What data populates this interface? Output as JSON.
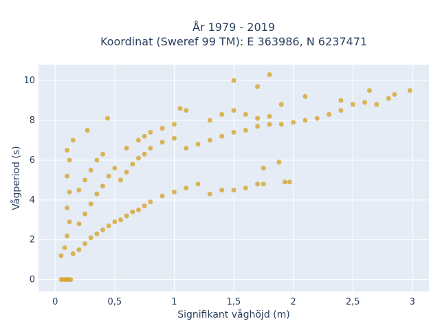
{
  "chart_data": {
    "type": "scatter",
    "title_lines": [
      "År 1979 - 2019",
      "Koordinat (Sweref 99 TM): E 363986, N 6237471"
    ],
    "xlabel": "Signifikant våghöjd (m)",
    "ylabel": "Vågperiod (s)",
    "xlim": [
      -0.14,
      3.14
    ],
    "ylim": [
      -0.6,
      10.8
    ],
    "xticks": [
      0,
      0.5,
      1,
      1.5,
      2,
      2.5,
      3
    ],
    "xtick_labels": [
      "0",
      "0,5",
      "1",
      "1,5",
      "2",
      "2,5",
      "3"
    ],
    "yticks": [
      0,
      2,
      4,
      6,
      8,
      10
    ],
    "ytick_labels": [
      "0",
      "2",
      "4",
      "6",
      "8",
      "10"
    ],
    "grid": true,
    "colors": {
      "point": "#d4a020",
      "plot_bg": "#e5ecf6",
      "grid": "#ffffff",
      "text": "#2a3f5f"
    },
    "series": [
      {
        "points": [
          [
            0.05,
            0.0
          ],
          [
            0.07,
            0.0
          ],
          [
            0.09,
            0.0
          ],
          [
            0.11,
            0.0
          ],
          [
            0.13,
            0.0
          ],
          [
            0.05,
            1.2
          ],
          [
            0.08,
            1.6
          ],
          [
            0.1,
            2.2
          ],
          [
            0.12,
            2.9
          ],
          [
            0.1,
            3.6
          ],
          [
            0.12,
            4.4
          ],
          [
            0.1,
            5.2
          ],
          [
            0.12,
            6.0
          ],
          [
            0.1,
            6.5
          ],
          [
            0.15,
            7.0
          ],
          [
            0.15,
            1.3
          ],
          [
            0.2,
            1.5
          ],
          [
            0.25,
            1.8
          ],
          [
            0.3,
            2.1
          ],
          [
            0.35,
            2.3
          ],
          [
            0.4,
            2.5
          ],
          [
            0.45,
            2.7
          ],
          [
            0.5,
            2.9
          ],
          [
            0.2,
            2.8
          ],
          [
            0.25,
            3.3
          ],
          [
            0.3,
            3.8
          ],
          [
            0.35,
            4.3
          ],
          [
            0.4,
            4.7
          ],
          [
            0.45,
            5.2
          ],
          [
            0.5,
            5.6
          ],
          [
            0.2,
            4.5
          ],
          [
            0.25,
            5.0
          ],
          [
            0.3,
            5.5
          ],
          [
            0.35,
            6.0
          ],
          [
            0.4,
            6.3
          ],
          [
            0.27,
            7.5
          ],
          [
            0.44,
            8.1
          ],
          [
            0.55,
            3.0
          ],
          [
            0.6,
            3.2
          ],
          [
            0.65,
            3.4
          ],
          [
            0.7,
            3.5
          ],
          [
            0.75,
            3.7
          ],
          [
            0.8,
            3.9
          ],
          [
            0.9,
            4.2
          ],
          [
            1.0,
            4.4
          ],
          [
            0.55,
            5.0
          ],
          [
            0.6,
            5.4
          ],
          [
            0.65,
            5.8
          ],
          [
            0.7,
            6.1
          ],
          [
            0.75,
            6.3
          ],
          [
            0.8,
            6.6
          ],
          [
            0.9,
            6.9
          ],
          [
            1.0,
            7.1
          ],
          [
            0.6,
            6.6
          ],
          [
            0.7,
            7.0
          ],
          [
            0.75,
            7.2
          ],
          [
            0.8,
            7.4
          ],
          [
            0.9,
            7.6
          ],
          [
            1.0,
            7.8
          ],
          [
            1.05,
            8.6
          ],
          [
            1.1,
            8.5
          ],
          [
            1.1,
            4.6
          ],
          [
            1.2,
            4.8
          ],
          [
            1.3,
            4.3
          ],
          [
            1.4,
            4.5
          ],
          [
            1.5,
            4.5
          ],
          [
            1.6,
            4.6
          ],
          [
            1.7,
            4.8
          ],
          [
            1.75,
            4.8
          ],
          [
            1.1,
            6.6
          ],
          [
            1.2,
            6.8
          ],
          [
            1.3,
            7.0
          ],
          [
            1.4,
            7.2
          ],
          [
            1.5,
            7.4
          ],
          [
            1.6,
            7.5
          ],
          [
            1.7,
            7.7
          ],
          [
            1.8,
            7.8
          ],
          [
            1.3,
            8.0
          ],
          [
            1.4,
            8.3
          ],
          [
            1.5,
            8.5
          ],
          [
            1.6,
            8.3
          ],
          [
            1.7,
            8.1
          ],
          [
            1.8,
            8.2
          ],
          [
            1.9,
            7.8
          ],
          [
            2.0,
            7.9
          ],
          [
            2.1,
            8.0
          ],
          [
            2.2,
            8.1
          ],
          [
            2.3,
            8.3
          ],
          [
            2.4,
            8.5
          ],
          [
            2.5,
            8.8
          ],
          [
            2.6,
            8.9
          ],
          [
            2.7,
            8.8
          ],
          [
            1.5,
            10.0
          ],
          [
            1.7,
            9.7
          ],
          [
            1.9,
            8.8
          ],
          [
            2.1,
            9.2
          ],
          [
            2.4,
            9.0
          ],
          [
            2.8,
            9.1
          ],
          [
            2.85,
            9.3
          ],
          [
            2.98,
            9.5
          ],
          [
            1.88,
            5.9
          ],
          [
            1.93,
            4.9
          ],
          [
            1.97,
            4.9
          ],
          [
            1.75,
            5.6
          ],
          [
            2.64,
            9.5
          ],
          [
            1.8,
            10.3
          ]
        ]
      }
    ]
  }
}
